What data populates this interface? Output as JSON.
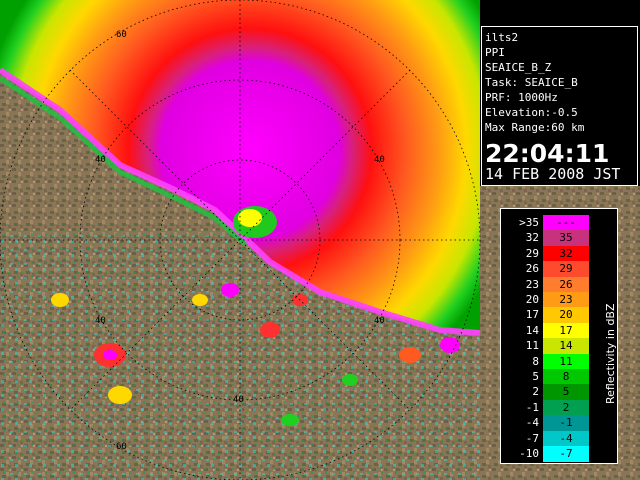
{
  "info": {
    "site": "ilts2",
    "scan_type": "PPI",
    "product": "SEAICE_B_Z",
    "task": "Task: SEAICE_B",
    "prf": "PRF: 1000Hz",
    "elevation": "Elevation:-0.5",
    "max_range": "Max Range:60 km",
    "time": "22:04:11",
    "date": "14 FEB 2008 JST"
  },
  "range_labels": {
    "r60_top": "60",
    "r60_bottom": "60",
    "r40_left": "40",
    "r40_right": "40",
    "r40_lower_left": "40",
    "r40_lower_right": "40",
    "r40_bottom": "40"
  },
  "legend": {
    "axis_label": "Reflectivity in dBZ",
    "rows": [
      {
        "low": ">35",
        "high": "---",
        "color": "#ff00ff"
      },
      {
        "low": "32",
        "high": "35",
        "color": "#c8327d"
      },
      {
        "low": "29",
        "high": "32",
        "color": "#ff0000"
      },
      {
        "low": "26",
        "high": "29",
        "color": "#ff4b2d"
      },
      {
        "low": "23",
        "high": "26",
        "color": "#ff7d2d"
      },
      {
        "low": "20",
        "high": "23",
        "color": "#ff9b14"
      },
      {
        "low": "17",
        "high": "20",
        "color": "#ffc800"
      },
      {
        "low": "14",
        "high": "17",
        "color": "#ffff00"
      },
      {
        "low": "11",
        "high": "14",
        "color": "#c8e600"
      },
      {
        "low": "8",
        "high": "11",
        "color": "#00ff00"
      },
      {
        "low": "5",
        "high": "8",
        "color": "#00c800"
      },
      {
        "low": "2",
        "high": "5",
        "color": "#009600"
      },
      {
        "low": "-1",
        "high": "2",
        "color": "#00a050"
      },
      {
        "low": "-4",
        "high": "-1",
        "color": "#009696"
      },
      {
        "low": "-7",
        "high": "-4",
        "color": "#00c8c8"
      },
      {
        "low": "-10",
        "high": "-7",
        "color": "#00ffff"
      }
    ]
  },
  "colors": {
    "land": "#8c7658",
    "magenta_core": "#e400e4",
    "red_band": "#ff2000",
    "orange_band": "#ff8c1e",
    "yellow_band": "#ffe600",
    "green_band": "#14d214"
  }
}
